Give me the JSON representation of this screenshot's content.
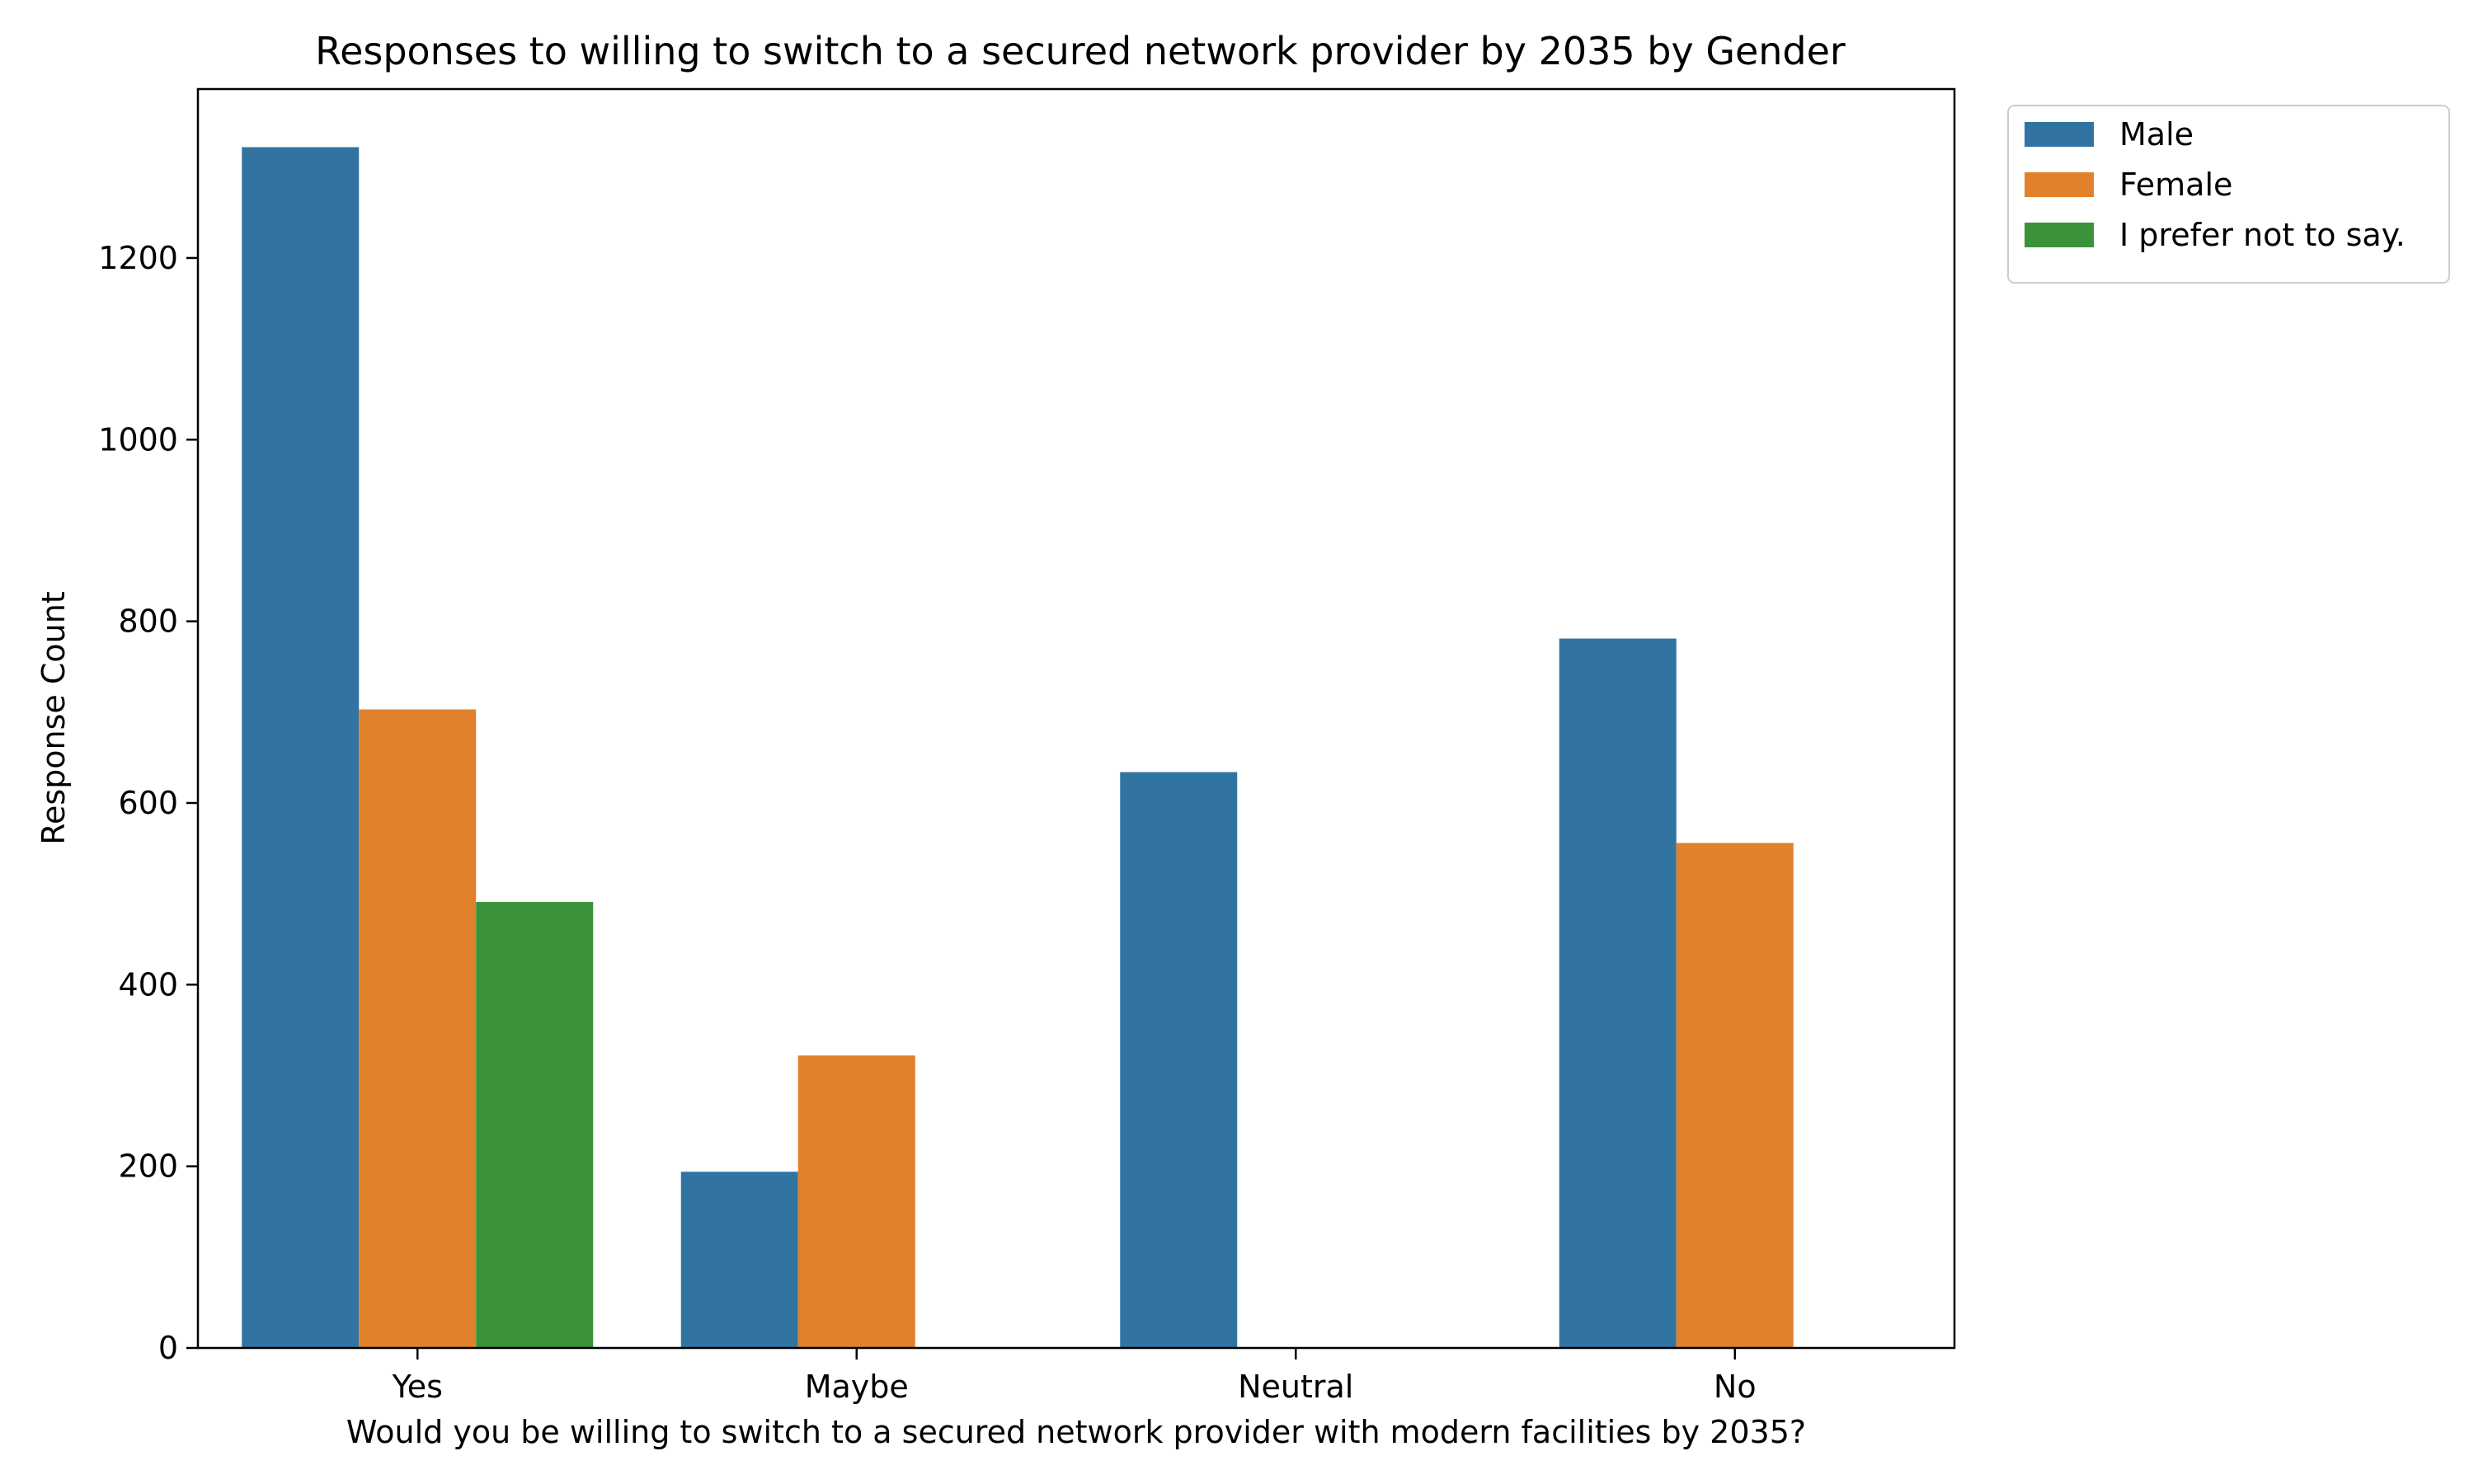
{
  "chart_data": {
    "type": "bar",
    "title": "Responses to willing to switch to a secured network provider by 2035 by Gender",
    "xlabel": "Would you be willing to switch to a secured network provider with modern facilities by 2035?",
    "ylabel": "Response Count",
    "categories": [
      "Yes",
      "Maybe",
      "Neutral",
      "No"
    ],
    "series": [
      {
        "name": "Male",
        "color": "#3274a1",
        "values": [
          1322,
          194,
          634,
          781
        ]
      },
      {
        "name": "Female",
        "color": "#e1812c",
        "values": [
          703,
          322,
          0,
          556
        ]
      },
      {
        "name": "I prefer not to say.",
        "color": "#3a923a",
        "values": [
          491,
          0,
          0,
          0
        ]
      }
    ],
    "ylim": [
      0,
      1386
    ],
    "yticks": [
      0,
      200,
      400,
      600,
      800,
      1000,
      1200
    ],
    "grid": false,
    "legend_position": "outside-top-right"
  }
}
